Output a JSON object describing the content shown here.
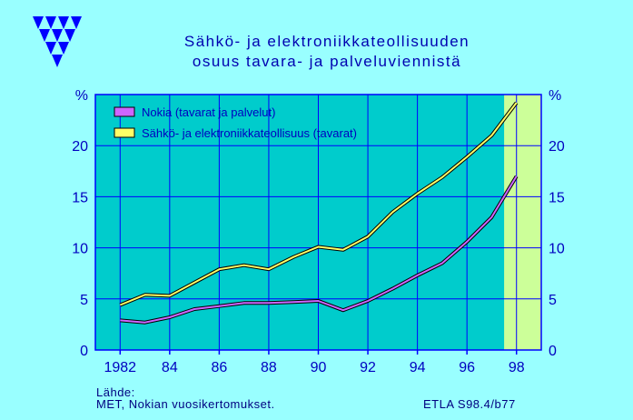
{
  "header": {
    "title_line1": "Sähkö- ja elektroniikkateollisuuden",
    "title_line2": "osuus tavara- ja palveluviennistä"
  },
  "logo": {
    "icon": "triangle-pattern-logo",
    "color": "#0000FF"
  },
  "colors": {
    "background": "#99FFFF",
    "plot_area": "#00CCCC",
    "grid": "#0000FF",
    "forecast_band": "#CCFF99",
    "nokia": "#CC66FF",
    "industry": "#FFFF66",
    "text": "#0000C0"
  },
  "chart_data": {
    "type": "line",
    "title": "Sähkö- ja elektroniikkateollisuuden osuus tavara- ja palveluviennistä",
    "ylabel_left": "%",
    "ylabel_right": "%",
    "xlim": [
      1981,
      1999
    ],
    "ylim": [
      0,
      25
    ],
    "grid": true,
    "legend_position": "top-left",
    "x_ticks": [
      1982,
      1984,
      1986,
      1988,
      1990,
      1992,
      1994,
      1996,
      1998
    ],
    "x_tick_labels": [
      "1982",
      "84",
      "86",
      "88",
      "90",
      "92",
      "94",
      "96",
      "98"
    ],
    "y_ticks": [
      0,
      5,
      10,
      15,
      20
    ],
    "forecast_band": [
      1997.5,
      1999
    ],
    "series": [
      {
        "name": "Nokia (tavarat ja palvelut)",
        "color": "#CC66FF",
        "x": [
          1982,
          1983,
          1984,
          1985,
          1986,
          1987,
          1988,
          1989,
          1990,
          1991,
          1992,
          1993,
          1994,
          1995,
          1996,
          1997,
          1998
        ],
        "values": [
          2.9,
          2.7,
          3.2,
          4.0,
          4.3,
          4.6,
          4.6,
          4.7,
          4.8,
          3.9,
          4.8,
          6.0,
          7.3,
          8.5,
          10.6,
          13.0,
          17.0
        ]
      },
      {
        "name": "Sähkö- ja elektroniikkateollisuus (tavarat)",
        "color": "#FFFF66",
        "x": [
          1982,
          1983,
          1984,
          1985,
          1986,
          1987,
          1988,
          1989,
          1990,
          1991,
          1992,
          1993,
          1994,
          1995,
          1996,
          1997,
          1998
        ],
        "values": [
          4.4,
          5.4,
          5.3,
          6.6,
          7.9,
          8.3,
          7.9,
          9.1,
          10.1,
          9.8,
          11.1,
          13.5,
          15.3,
          16.9,
          18.9,
          21.0,
          24.2
        ]
      }
    ]
  },
  "footer": {
    "source_label": "Lähde:",
    "source_text": "MET, Nokian vuosikertomukset.",
    "code": "ETLA S98.4/b77"
  }
}
